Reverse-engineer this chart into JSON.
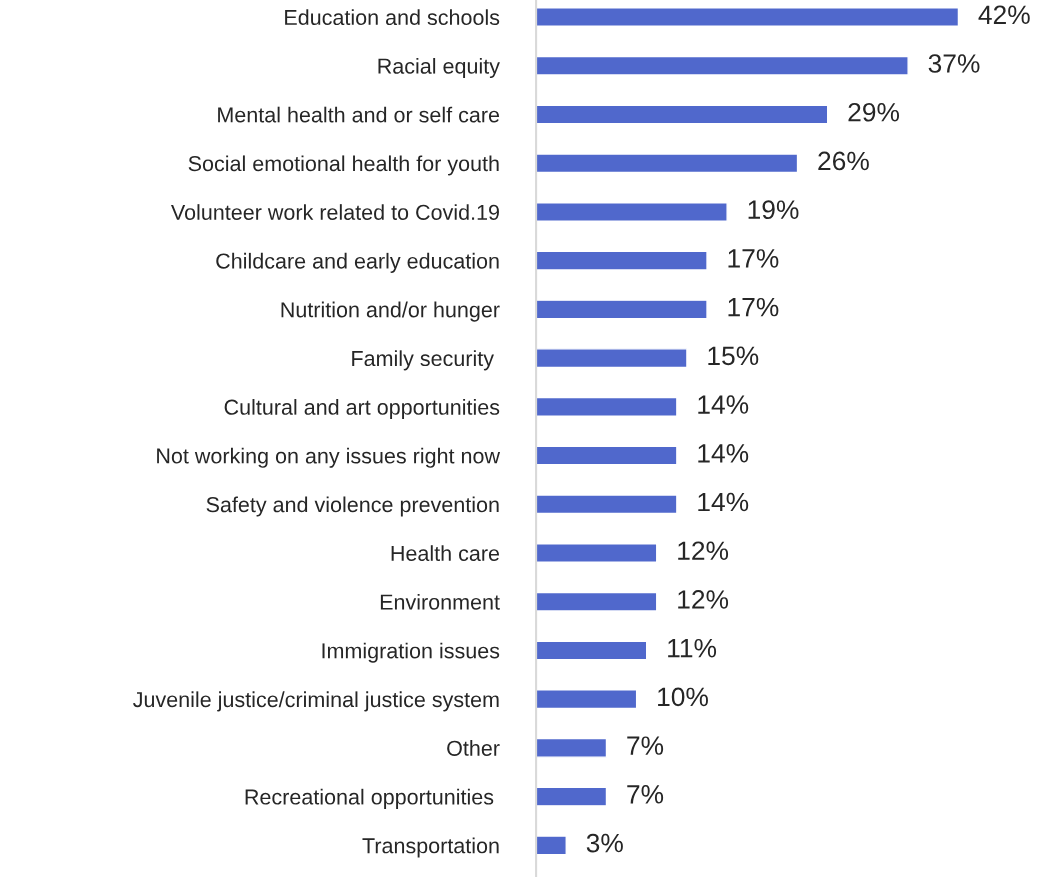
{
  "chart_data": {
    "type": "bar",
    "orientation": "horizontal",
    "categories": [
      "Education and schools",
      "Racial equity",
      "Mental health and or self care",
      "Social emotional health for youth",
      "Volunteer work related to Covid.19",
      "Childcare and early education",
      "Nutrition and/or hunger",
      "Family security ",
      "Cultural and art opportunities",
      "Not working on any issues right now",
      "Safety and violence prevention",
      "Health care",
      "Environment",
      "Immigration issues",
      "Juvenile justice/criminal justice system",
      "Other",
      "Recreational opportunities ",
      "Transportation"
    ],
    "values": [
      42,
      37,
      29,
      26,
      19,
      17,
      17,
      15,
      14,
      14,
      14,
      12,
      12,
      11,
      10,
      7,
      7,
      3
    ],
    "value_labels": [
      "42%",
      "37%",
      "29%",
      "26%",
      "19%",
      "17%",
      "17%",
      "15%",
      "14%",
      "14%",
      "14%",
      "12%",
      "12%",
      "11%",
      "10%",
      "7%",
      "7%",
      "3%"
    ],
    "color": "#5068cc",
    "grid": false,
    "legend": false
  }
}
